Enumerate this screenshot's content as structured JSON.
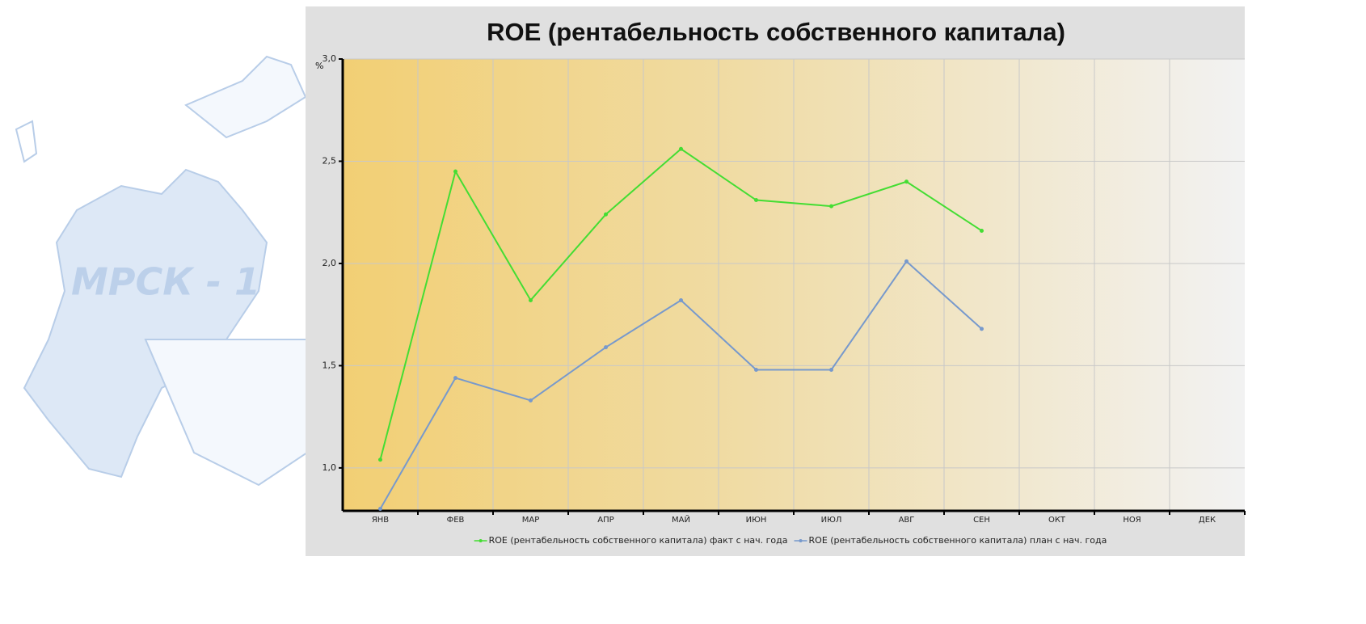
{
  "watermark": "МРСК - 1",
  "chart_data": {
    "type": "line",
    "title": "ROE (рентабельность собственного капитала)",
    "y_label": "%",
    "categories": [
      "ЯНВ",
      "ФЕВ",
      "МАР",
      "АПР",
      "МАЙ",
      "ИЮН",
      "ИЮЛ",
      "АВГ",
      "СЕН",
      "ОКТ",
      "НОЯ",
      "ДЕК"
    ],
    "series": [
      {
        "name": "ROE (рентабельность собственного капитала) факт с нач. года",
        "color": "#44dd33",
        "values": [
          1.04,
          2.45,
          1.82,
          2.24,
          2.56,
          2.31,
          2.28,
          2.4,
          2.16,
          null,
          null,
          null
        ]
      },
      {
        "name": "ROE (рентабельность собственного капитала) план с нач. года",
        "color": "#7799cc",
        "values": [
          0.8,
          1.44,
          1.33,
          1.59,
          1.82,
          1.48,
          1.48,
          2.01,
          1.68,
          null,
          null,
          null
        ]
      }
    ],
    "ylim": [
      0.79,
      3.0
    ],
    "yticks": [
      {
        "value": 1.0,
        "label": "1,0"
      },
      {
        "value": 1.5,
        "label": "1,5"
      },
      {
        "value": 2.0,
        "label": "2,0"
      },
      {
        "value": 2.5,
        "label": "2,5"
      },
      {
        "value": 3.0,
        "label": "3,0"
      }
    ],
    "grid": true,
    "legend": "bottom"
  }
}
